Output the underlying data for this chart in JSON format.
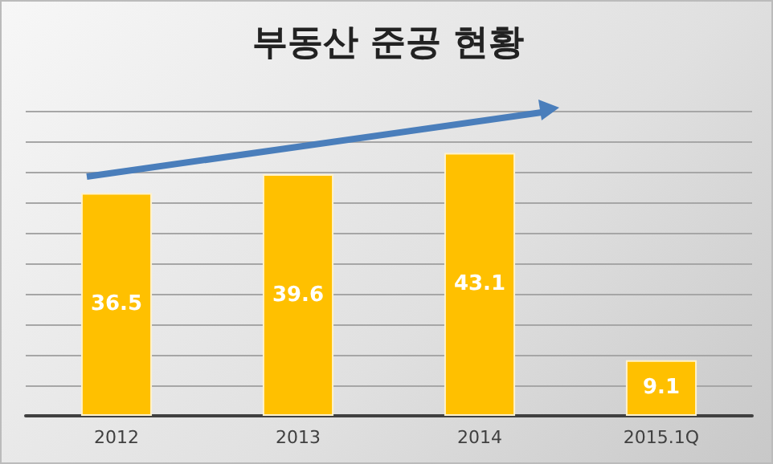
{
  "chart_data": {
    "type": "bar",
    "title": "부동산 준공 현황",
    "categories": [
      "2012",
      "2013",
      "2014",
      "2015.1Q"
    ],
    "values": [
      36.5,
      39.6,
      43.1,
      9.1
    ],
    "color": "#ffc000",
    "ylim": [
      0,
      50
    ],
    "yticks": [
      0,
      5,
      10,
      15,
      20,
      25,
      30,
      35,
      40,
      45,
      50
    ],
    "tick_labels": "x",
    "grid": "y",
    "data_labels": true
  }
}
